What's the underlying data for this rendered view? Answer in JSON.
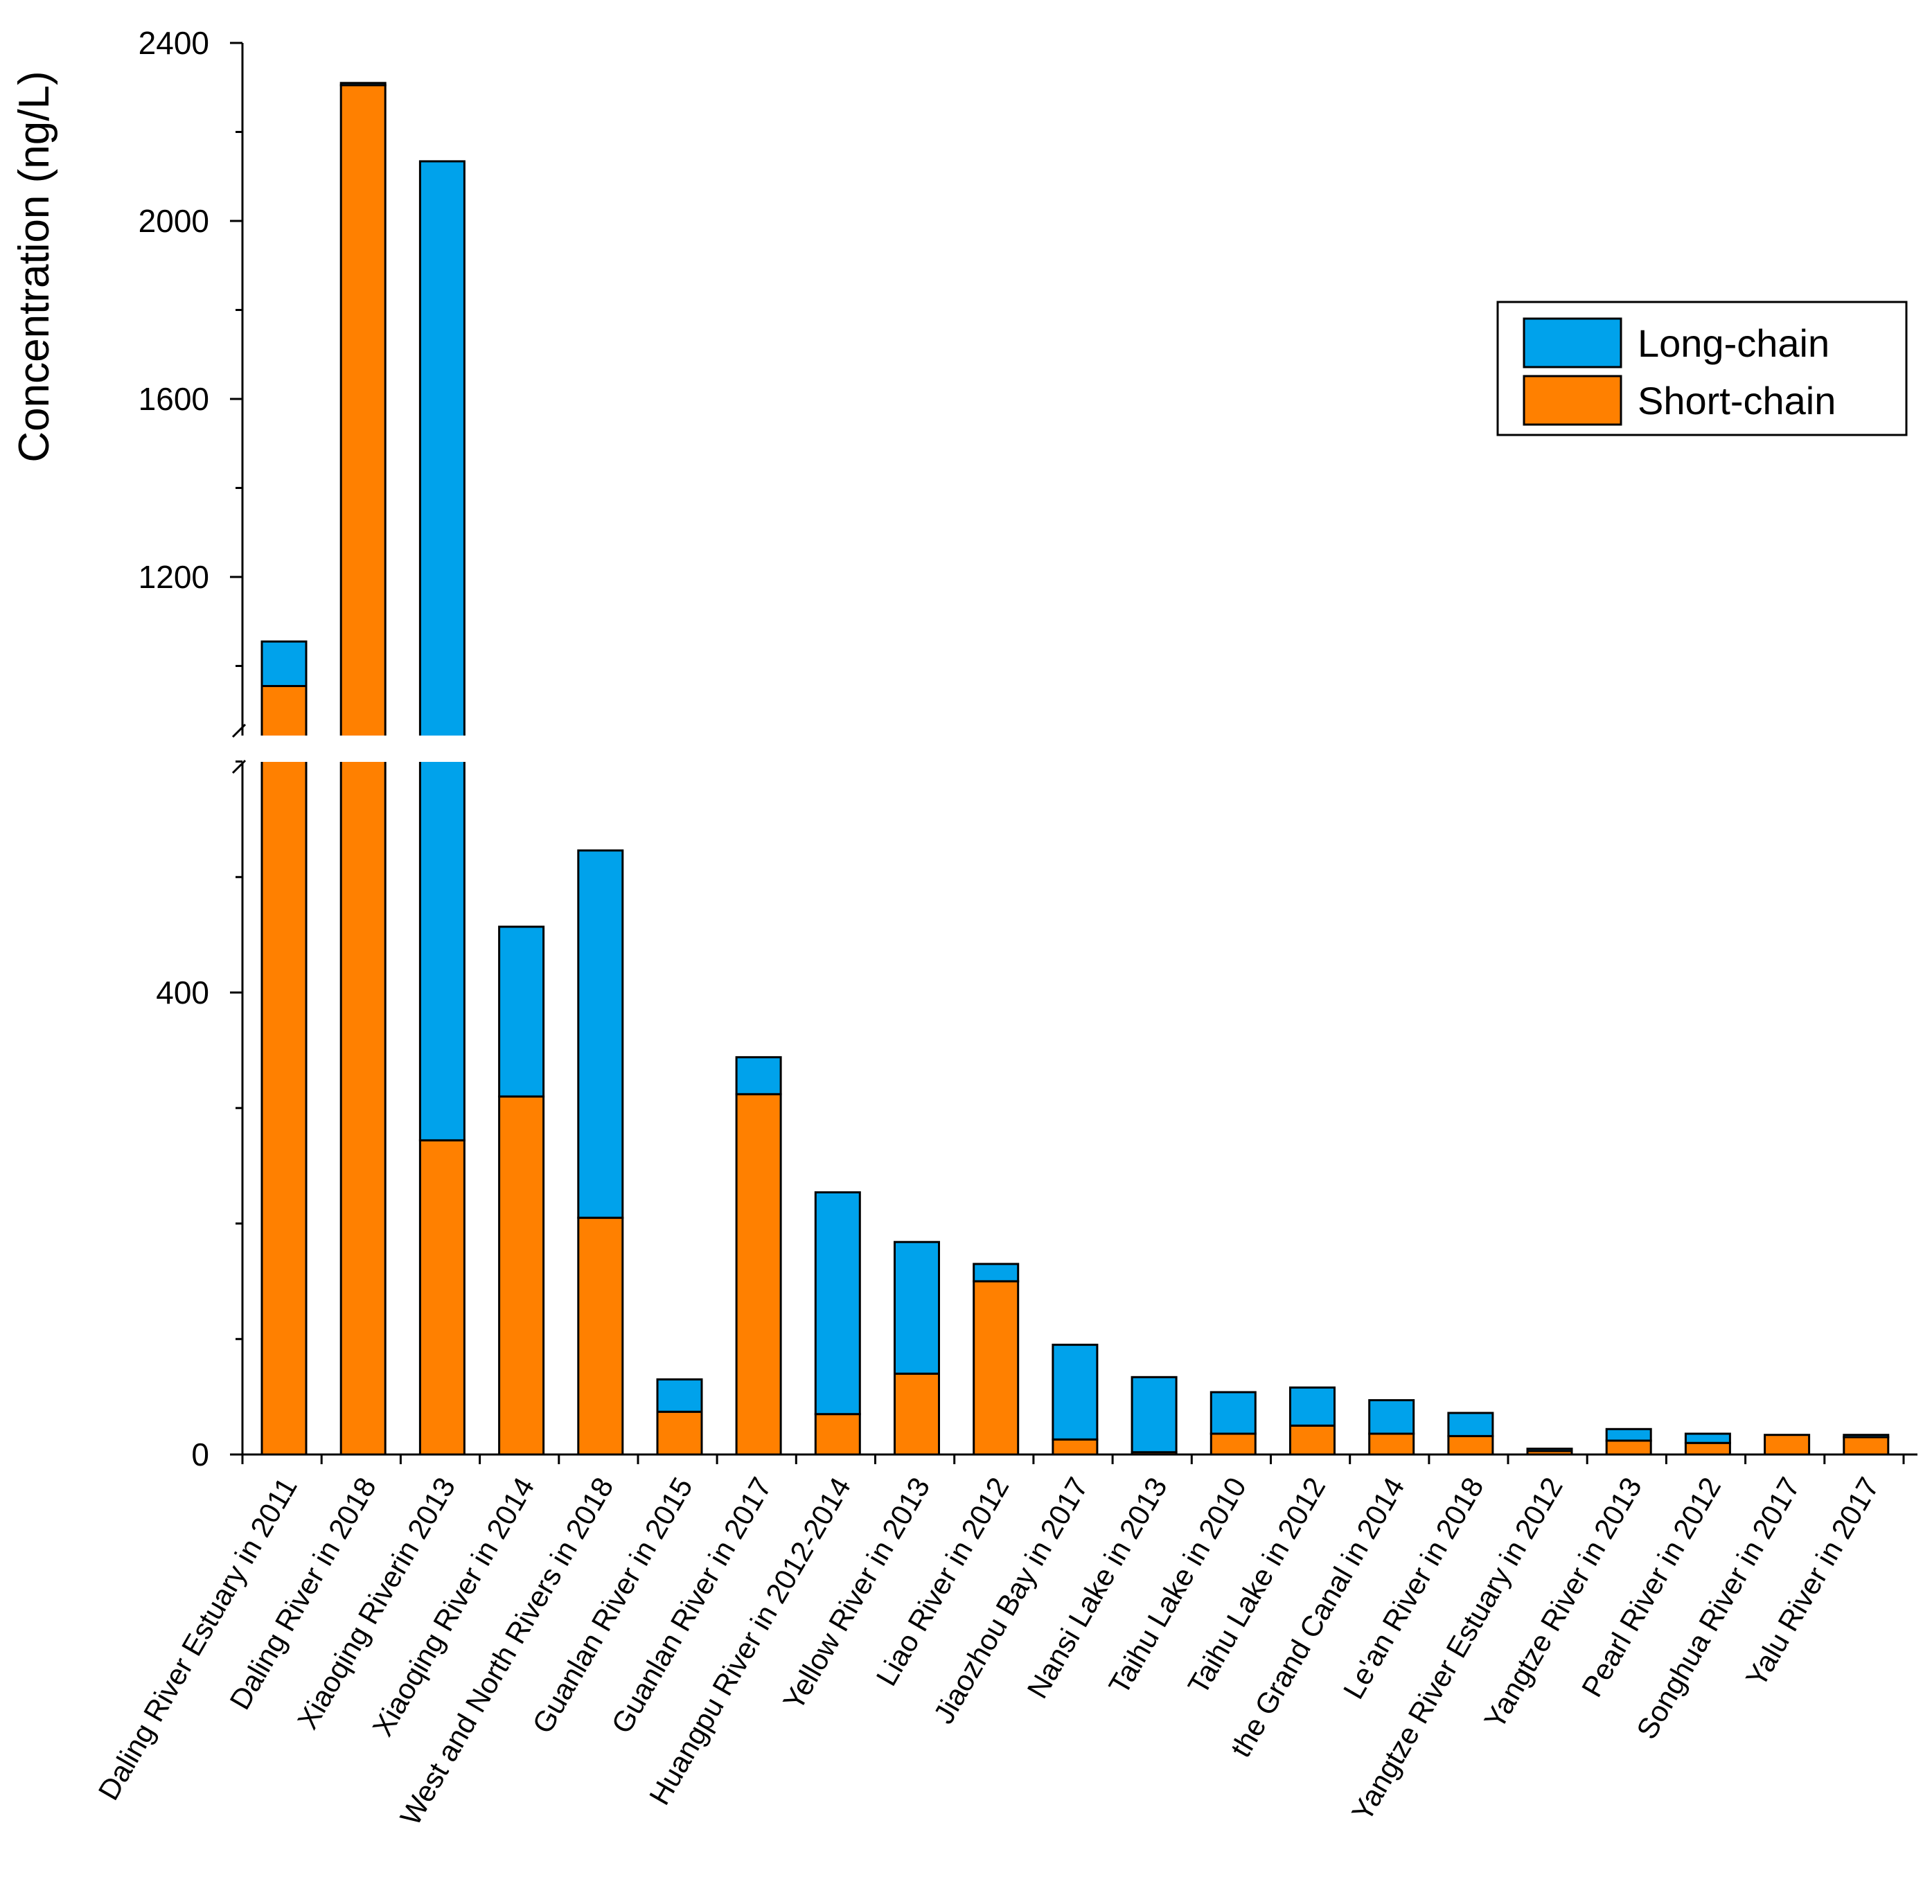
{
  "chart_data": {
    "type": "bar",
    "stacked": true,
    "title": "",
    "xlabel": "",
    "ylabel": "Concentration (ng/L)",
    "axis_break": {
      "lower_range": [
        0,
        600
      ],
      "upper_range": [
        900,
        2400
      ]
    },
    "yticks": [
      0,
      400,
      1200,
      1600,
      2000,
      2400
    ],
    "categories": [
      "Daling River Estuary in 2011",
      "Daling River in 2018",
      "Xiaoqing Riverin 2013",
      "Xiaoqing River in 2014",
      "West and North Rivers in 2018",
      "Guanlan River in 2015",
      "Guanlan River in 2017",
      "Huangpu River in 2012-2014",
      "Yellow River in 2013",
      "Liao River in 2012",
      "Jiaozhou Bay in 2017",
      "Nansi Lake in 2013",
      "Taihu Lake in 2010",
      "Taihu Lake in 2012",
      "the Grand Canal in 2014",
      "Le'an River in 2018",
      "Yangtze River Estuary in 2012",
      "Yangtze River in 2013",
      "Pearl River in 2012",
      "Songhua River in 2017",
      "Yalu River in 2017"
    ],
    "series": [
      {
        "name": "Short-chain",
        "color": "#FF8000",
        "values": [
          955,
          2305,
          272,
          310,
          205,
          37,
          312,
          35,
          70,
          150,
          13,
          2,
          18,
          25,
          18,
          16,
          3,
          12,
          10,
          17,
          15
        ]
      },
      {
        "name": "Long-chain",
        "color": "#00A2EB",
        "values": [
          100,
          5,
          1862,
          147,
          318,
          28,
          32,
          192,
          114,
          15,
          82,
          65,
          36,
          33,
          29,
          20,
          2,
          10,
          8,
          0,
          2
        ]
      }
    ],
    "legend": {
      "position": "top-right",
      "entries": [
        "Long-chain",
        "Short-chain"
      ]
    }
  }
}
